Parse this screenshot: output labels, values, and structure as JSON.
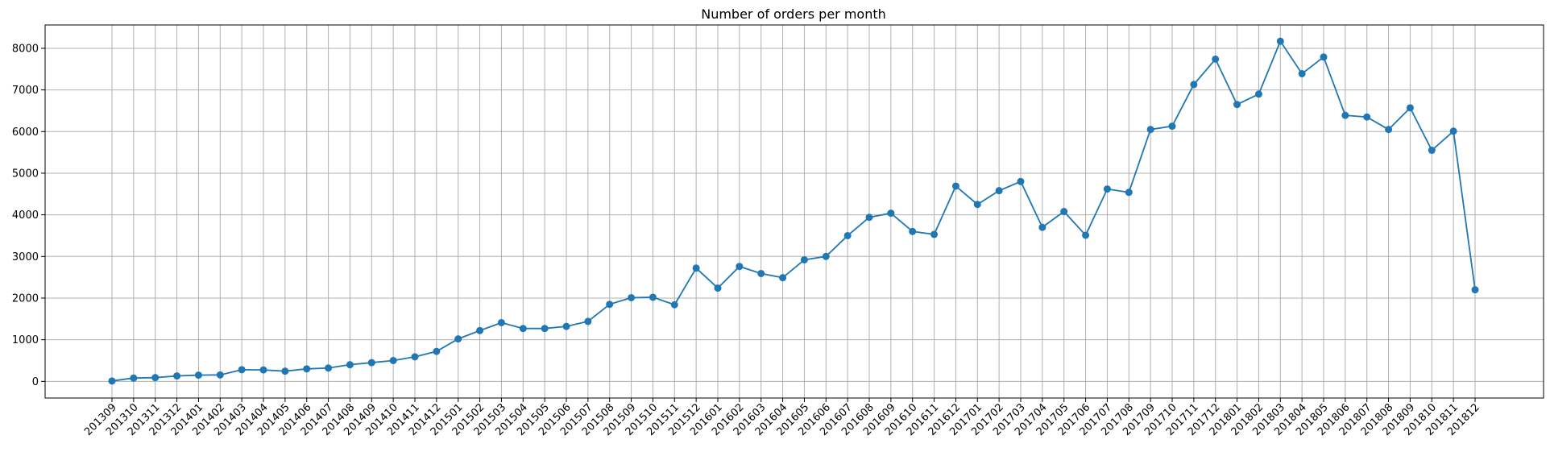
{
  "chart_data": {
    "type": "line",
    "title": "Number of orders per month",
    "xlabel": "",
    "ylabel": "",
    "x": [
      "201309",
      "201310",
      "201311",
      "201312",
      "201401",
      "201402",
      "201403",
      "201404",
      "201405",
      "201406",
      "201407",
      "201408",
      "201409",
      "201410",
      "201411",
      "201412",
      "201501",
      "201502",
      "201503",
      "201504",
      "201505",
      "201506",
      "201507",
      "201508",
      "201509",
      "201510",
      "201511",
      "201512",
      "201601",
      "201602",
      "201603",
      "201604",
      "201605",
      "201606",
      "201607",
      "201608",
      "201609",
      "201610",
      "201611",
      "201612",
      "201701",
      "201702",
      "201703",
      "201704",
      "201705",
      "201706",
      "201707",
      "201708",
      "201709",
      "201710",
      "201711",
      "201712",
      "201801",
      "201802",
      "201803",
      "201804",
      "201805",
      "201806",
      "201807",
      "201808",
      "201809",
      "201810",
      "201811",
      "201812"
    ],
    "series": [
      {
        "values": [
          10,
          80,
          90,
          130,
          150,
          155,
          280,
          275,
          245,
          300,
          320,
          400,
          450,
          500,
          590,
          720,
          1020,
          1220,
          1410,
          1270,
          1270,
          1320,
          1440,
          1850,
          2010,
          2020,
          1840,
          2720,
          2240,
          2760,
          2590,
          2490,
          2920,
          3000,
          3500,
          3940,
          4040,
          3600,
          3530,
          4690,
          4250,
          4580,
          4800,
          3700,
          4080,
          3510,
          4620,
          4540,
          6050,
          6130,
          7130,
          7740,
          6650,
          6900,
          8170,
          7390,
          7790,
          6390,
          6350,
          6050,
          6570,
          5550,
          6010,
          2200
        ],
        "color": "#1f77b4",
        "marker": "circle"
      }
    ],
    "yticks": [
      0,
      1000,
      2000,
      3000,
      4000,
      5000,
      6000,
      7000,
      8000
    ],
    "ylim": [
      -400,
      8560
    ],
    "xlabel_rotation": 45,
    "grid": true,
    "legend": "none"
  }
}
